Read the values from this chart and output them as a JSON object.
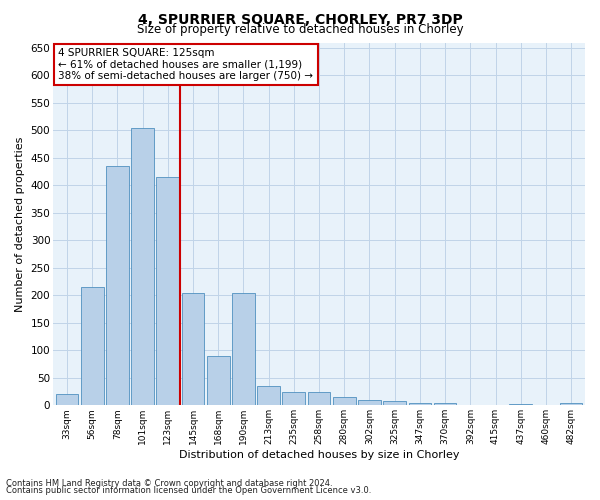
{
  "title": "4, SPURRIER SQUARE, CHORLEY, PR7 3DP",
  "subtitle": "Size of property relative to detached houses in Chorley",
  "xlabel": "Distribution of detached houses by size in Chorley",
  "ylabel": "Number of detached properties",
  "footnote1": "Contains HM Land Registry data © Crown copyright and database right 2024.",
  "footnote2": "Contains public sector information licensed under the Open Government Licence v3.0.",
  "annotation_line1": "4 SPURRIER SQUARE: 125sqm",
  "annotation_line2": "← 61% of detached houses are smaller (1,199)",
  "annotation_line3": "38% of semi-detached houses are larger (750) →",
  "bar_color": "#b8d0e8",
  "bar_edge_color": "#5090c0",
  "grid_color": "#c0d4e8",
  "bg_color": "#e8f2fa",
  "vline_color": "#cc0000",
  "vline_x": 4.5,
  "annotation_box_edge": "#cc0000",
  "categories": [
    "33sqm",
    "56sqm",
    "78sqm",
    "101sqm",
    "123sqm",
    "145sqm",
    "168sqm",
    "190sqm",
    "213sqm",
    "235sqm",
    "258sqm",
    "280sqm",
    "302sqm",
    "325sqm",
    "347sqm",
    "370sqm",
    "392sqm",
    "415sqm",
    "437sqm",
    "460sqm",
    "482sqm"
  ],
  "values": [
    20,
    215,
    435,
    505,
    415,
    205,
    90,
    205,
    35,
    25,
    25,
    15,
    10,
    8,
    4,
    4,
    0,
    0,
    3,
    0,
    5
  ],
  "ylim": [
    0,
    660
  ],
  "yticks": [
    0,
    50,
    100,
    150,
    200,
    250,
    300,
    350,
    400,
    450,
    500,
    550,
    600,
    650
  ]
}
